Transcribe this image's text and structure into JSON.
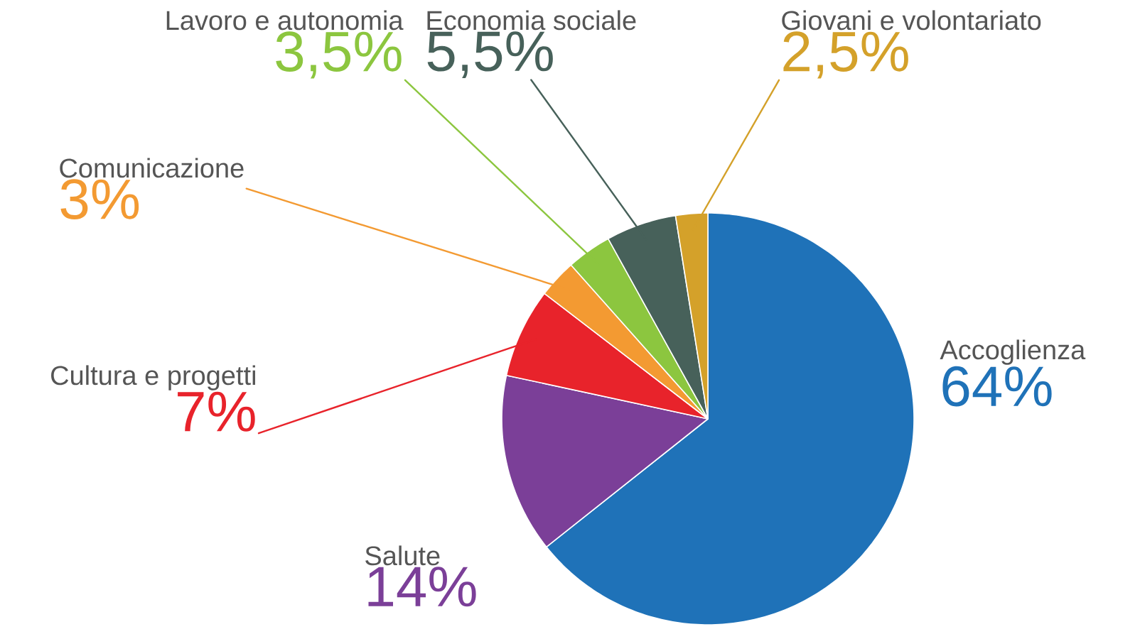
{
  "chart_data": {
    "type": "pie",
    "categories": [
      "Accoglienza",
      "Salute",
      "Cultura e progetti",
      "Comunicazione",
      "Lavoro e autonomia",
      "Economia sociale",
      "Giovani e volontariato"
    ],
    "values": [
      64,
      14,
      7,
      3,
      3.5,
      5.5,
      2.5
    ],
    "value_labels": [
      "64%",
      "14%",
      "7%",
      "3%",
      "3,5%",
      "5,5%",
      "2,5%"
    ],
    "colors": [
      "#1f72b8",
      "#7b3f98",
      "#e8232b",
      "#f39a32",
      "#8cc63f",
      "#47615a",
      "#d4a12a"
    ]
  }
}
